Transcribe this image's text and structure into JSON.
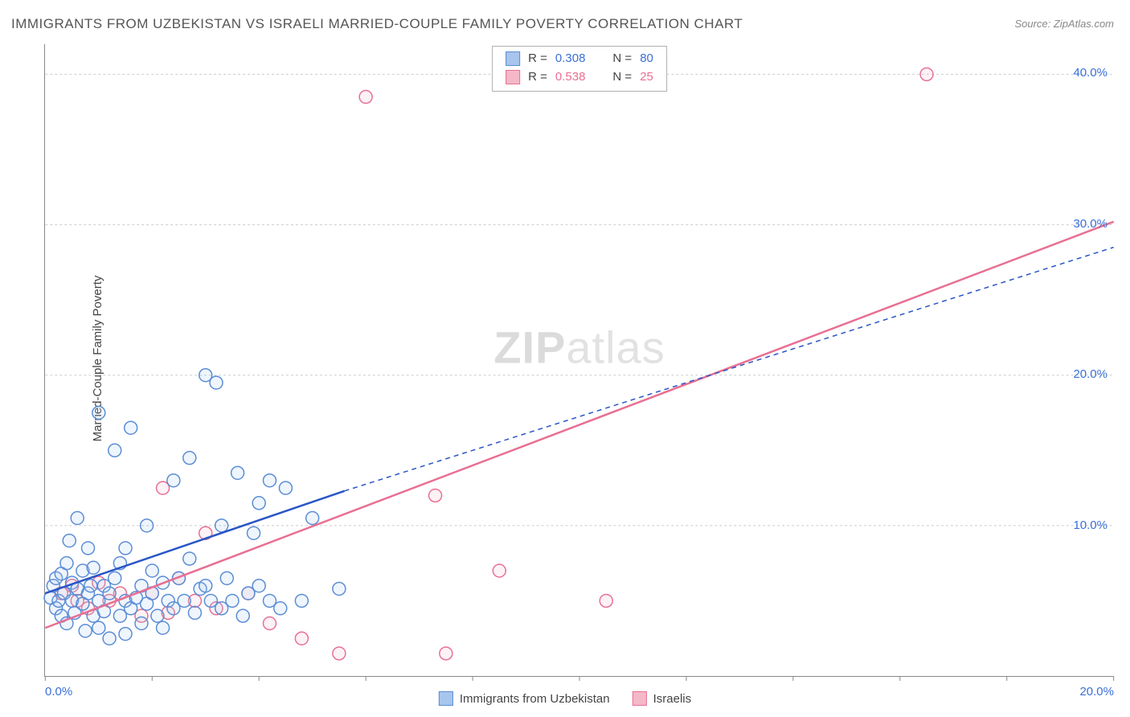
{
  "title": "IMMIGRANTS FROM UZBEKISTAN VS ISRAELI MARRIED-COUPLE FAMILY POVERTY CORRELATION CHART",
  "source_label": "Source: ZipAtlas.com",
  "ylabel": "Married-Couple Family Poverty",
  "watermark_bold": "ZIP",
  "watermark_rest": "atlas",
  "chart": {
    "type": "scatter-with-trend",
    "xlim": [
      0,
      20
    ],
    "ylim": [
      0,
      42
    ],
    "xtick_positions": [
      0,
      2,
      4,
      6,
      8,
      10,
      12,
      14,
      16,
      18,
      20
    ],
    "xtick_labels_shown": {
      "0": "0.0%",
      "20": "20.0%"
    },
    "ytick_positions": [
      10,
      20,
      30,
      40
    ],
    "ytick_labels": [
      "10.0%",
      "20.0%",
      "30.0%",
      "40.0%"
    ],
    "grid_color": "#cccccc",
    "point_radius": 8,
    "series": [
      {
        "name": "Immigrants from Uzbekistan",
        "color_stroke": "#5b8dd6",
        "color_fill": "#a8c5ed",
        "r_value": "0.308",
        "n_value": "80",
        "trend_start": [
          0,
          5.5
        ],
        "trend_solid_end": [
          5.6,
          12.3
        ],
        "trend_dash_end": [
          20,
          28.5
        ],
        "points": [
          [
            0.1,
            5.2
          ],
          [
            0.15,
            6.0
          ],
          [
            0.2,
            4.5
          ],
          [
            0.2,
            6.5
          ],
          [
            0.25,
            5.0
          ],
          [
            0.3,
            6.8
          ],
          [
            0.3,
            4.0
          ],
          [
            0.35,
            5.5
          ],
          [
            0.4,
            7.5
          ],
          [
            0.4,
            3.5
          ],
          [
            0.45,
            9.0
          ],
          [
            0.5,
            5.0
          ],
          [
            0.5,
            6.2
          ],
          [
            0.55,
            4.2
          ],
          [
            0.6,
            5.8
          ],
          [
            0.6,
            10.5
          ],
          [
            0.7,
            4.8
          ],
          [
            0.7,
            7.0
          ],
          [
            0.75,
            3.0
          ],
          [
            0.8,
            5.5
          ],
          [
            0.8,
            8.5
          ],
          [
            0.85,
            6.0
          ],
          [
            0.9,
            4.0
          ],
          [
            0.9,
            7.2
          ],
          [
            1.0,
            5.0
          ],
          [
            1.0,
            3.2
          ],
          [
            1.0,
            17.5
          ],
          [
            1.1,
            6.0
          ],
          [
            1.1,
            4.3
          ],
          [
            1.2,
            5.5
          ],
          [
            1.2,
            2.5
          ],
          [
            1.3,
            6.5
          ],
          [
            1.3,
            15.0
          ],
          [
            1.4,
            4.0
          ],
          [
            1.4,
            7.5
          ],
          [
            1.5,
            5.0
          ],
          [
            1.5,
            8.5
          ],
          [
            1.5,
            2.8
          ],
          [
            1.6,
            4.5
          ],
          [
            1.6,
            16.5
          ],
          [
            1.7,
            5.2
          ],
          [
            1.8,
            6.0
          ],
          [
            1.8,
            3.5
          ],
          [
            1.9,
            4.8
          ],
          [
            1.9,
            10.0
          ],
          [
            2.0,
            5.5
          ],
          [
            2.0,
            7.0
          ],
          [
            2.1,
            4.0
          ],
          [
            2.2,
            6.2
          ],
          [
            2.2,
            3.2
          ],
          [
            2.3,
            5.0
          ],
          [
            2.4,
            13.0
          ],
          [
            2.4,
            4.5
          ],
          [
            2.5,
            6.5
          ],
          [
            2.6,
            5.0
          ],
          [
            2.7,
            7.8
          ],
          [
            2.7,
            14.5
          ],
          [
            2.8,
            4.2
          ],
          [
            2.9,
            5.8
          ],
          [
            3.0,
            20.0
          ],
          [
            3.0,
            6.0
          ],
          [
            3.1,
            5.0
          ],
          [
            3.2,
            19.5
          ],
          [
            3.3,
            4.5
          ],
          [
            3.3,
            10.0
          ],
          [
            3.4,
            6.5
          ],
          [
            3.5,
            5.0
          ],
          [
            3.6,
            13.5
          ],
          [
            3.7,
            4.0
          ],
          [
            3.8,
            5.5
          ],
          [
            3.9,
            9.5
          ],
          [
            4.0,
            6.0
          ],
          [
            4.0,
            11.5
          ],
          [
            4.2,
            5.0
          ],
          [
            4.2,
            13.0
          ],
          [
            4.4,
            4.5
          ],
          [
            4.5,
            12.5
          ],
          [
            4.8,
            5.0
          ],
          [
            5.0,
            10.5
          ],
          [
            5.5,
            5.8
          ]
        ]
      },
      {
        "name": "Israelis",
        "color_stroke": "#e86f92",
        "color_fill": "#f5b8c9",
        "r_value": "0.538",
        "n_value": "25",
        "trend_start": [
          0,
          3.2
        ],
        "trend_solid_end": [
          20,
          30.2
        ],
        "trend_dash_end": null,
        "points": [
          [
            0.3,
            5.5
          ],
          [
            0.5,
            6.0
          ],
          [
            0.6,
            5.0
          ],
          [
            0.8,
            4.5
          ],
          [
            1.0,
            6.2
          ],
          [
            1.2,
            5.0
          ],
          [
            1.4,
            5.5
          ],
          [
            1.8,
            4.0
          ],
          [
            2.0,
            5.5
          ],
          [
            2.2,
            12.5
          ],
          [
            2.3,
            4.2
          ],
          [
            2.5,
            6.5
          ],
          [
            2.8,
            5.0
          ],
          [
            3.0,
            9.5
          ],
          [
            3.2,
            4.5
          ],
          [
            3.8,
            5.5
          ],
          [
            4.2,
            3.5
          ],
          [
            4.8,
            2.5
          ],
          [
            5.5,
            1.5
          ],
          [
            6.0,
            38.5
          ],
          [
            7.3,
            12.0
          ],
          [
            7.5,
            1.5
          ],
          [
            8.5,
            7.0
          ],
          [
            10.5,
            5.0
          ],
          [
            16.5,
            40.0
          ]
        ]
      }
    ]
  },
  "colors": {
    "blue_text": "#3a6fd8",
    "pink_text": "#e86f92"
  },
  "bottom_legend": [
    {
      "label": "Immigrants from Uzbekistan",
      "fill": "#a8c5ed",
      "stroke": "#5b8dd6"
    },
    {
      "label": "Israelis",
      "fill": "#f5b8c9",
      "stroke": "#e86f92"
    }
  ]
}
